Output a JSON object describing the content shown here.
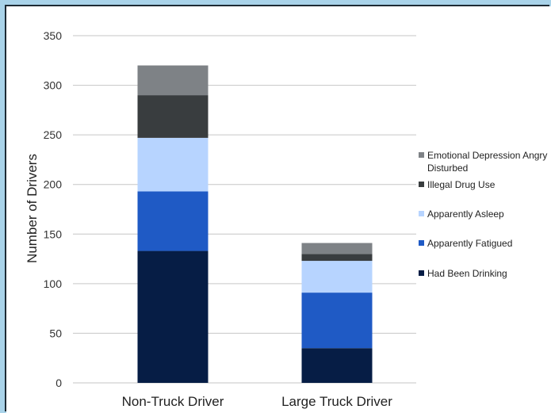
{
  "chart_data": {
    "type": "bar",
    "stacked": true,
    "title": "",
    "xlabel": "",
    "ylabel": "Number of Drivers",
    "ylim": [
      0,
      350
    ],
    "yticks": [
      0,
      50,
      100,
      150,
      200,
      250,
      300,
      350
    ],
    "grid": true,
    "legend_position": "right",
    "categories": [
      "Non-Truck Driver",
      "Large Truck Driver"
    ],
    "series": [
      {
        "name": "Had Been Drinking",
        "values": [
          133,
          35
        ],
        "color": "#061d45"
      },
      {
        "name": "Apparently Fatigued",
        "values": [
          60,
          56
        ],
        "color": "#1f5ac5"
      },
      {
        "name": "Apparently Asleep",
        "values": [
          54,
          32
        ],
        "color": "#b7d4ff"
      },
      {
        "name": "Illegal Drug Use",
        "values": [
          43,
          7
        ],
        "color": "#393d3f"
      },
      {
        "name": "Emotional Depression Angry Disturbed",
        "values": [
          30,
          11
        ],
        "color": "#7e8286"
      }
    ],
    "legend_lines": [
      [
        "Emotional Depression Angry",
        "Disturbed"
      ],
      [
        "Illegal Drug Use"
      ],
      [
        "Apparently Asleep"
      ],
      [
        "Apparently Fatigued"
      ],
      [
        "Had Been Drinking"
      ]
    ]
  }
}
